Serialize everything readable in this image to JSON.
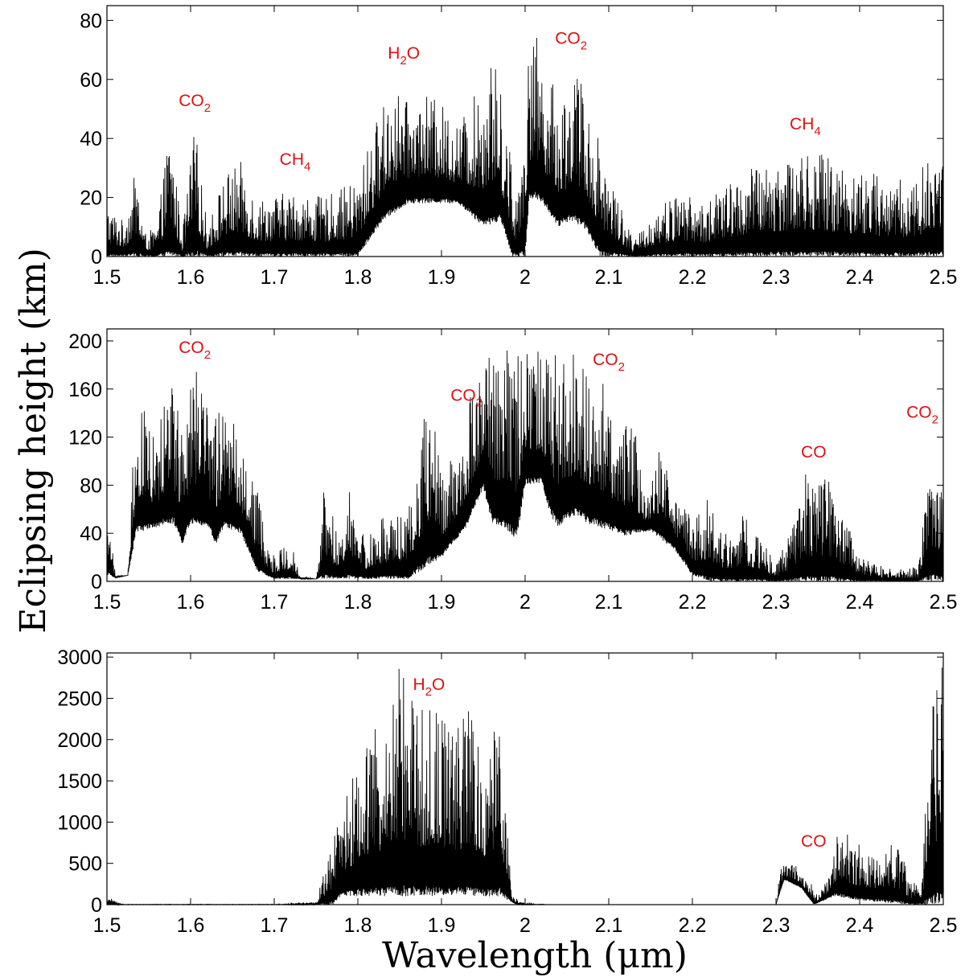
{
  "chart_data": [
    {
      "type": "line",
      "id": "top",
      "xlim": [
        1.5,
        2.5
      ],
      "ylim": [
        0,
        85
      ],
      "x_ticks": [
        1.5,
        1.6,
        1.7,
        1.8,
        1.9,
        2,
        2.1,
        2.2,
        2.3,
        2.4,
        2.5
      ],
      "x_tick_labels": [
        "1.5",
        "1.6",
        "1.7",
        "1.8",
        "1.9",
        "2",
        "2.1",
        "2.2",
        "2.3",
        "2.4",
        "2.5"
      ],
      "y_ticks": [
        0,
        20,
        40,
        60,
        80
      ],
      "y_tick_labels": [
        "0",
        "20",
        "40",
        "60",
        "80"
      ],
      "grid": false,
      "annotations": [
        {
          "base": "CO",
          "sub": "2",
          "x": 1.605,
          "y": 51
        },
        {
          "base": "CH",
          "sub": "4",
          "x": 1.725,
          "y": 31
        },
        {
          "base": "H",
          "sub": "2",
          "tail": "O",
          "x": 1.855,
          "y": 67
        },
        {
          "base": "CO",
          "sub": "2",
          "x": 2.055,
          "y": 72
        },
        {
          "base": "CH",
          "sub": "4",
          "x": 2.335,
          "y": 43
        }
      ],
      "spectrum": {
        "envelope": [
          [
            1.5,
            18
          ],
          [
            1.52,
            12
          ],
          [
            1.535,
            30
          ],
          [
            1.545,
            8
          ],
          [
            1.56,
            10
          ],
          [
            1.575,
            46
          ],
          [
            1.59,
            8
          ],
          [
            1.605,
            45
          ],
          [
            1.62,
            10
          ],
          [
            1.64,
            28
          ],
          [
            1.66,
            32
          ],
          [
            1.68,
            20
          ],
          [
            1.72,
            22
          ],
          [
            1.76,
            20
          ],
          [
            1.8,
            26
          ],
          [
            1.82,
            45
          ],
          [
            1.84,
            58
          ],
          [
            1.86,
            52
          ],
          [
            1.88,
            55
          ],
          [
            1.9,
            52
          ],
          [
            1.92,
            45
          ],
          [
            1.94,
            55
          ],
          [
            1.96,
            70
          ],
          [
            1.975,
            52
          ],
          [
            1.99,
            20
          ],
          [
            2.0,
            60
          ],
          [
            2.01,
            78
          ],
          [
            2.03,
            60
          ],
          [
            2.045,
            55
          ],
          [
            2.06,
            66
          ],
          [
            2.075,
            52
          ],
          [
            2.09,
            40
          ],
          [
            2.11,
            22
          ],
          [
            2.13,
            5
          ],
          [
            2.16,
            18
          ],
          [
            2.19,
            22
          ],
          [
            2.21,
            18
          ],
          [
            2.24,
            24
          ],
          [
            2.27,
            30
          ],
          [
            2.31,
            35
          ],
          [
            2.35,
            36
          ],
          [
            2.38,
            32
          ],
          [
            2.42,
            28
          ],
          [
            2.46,
            26
          ],
          [
            2.5,
            38
          ]
        ],
        "floor": [
          [
            1.5,
            0
          ],
          [
            1.8,
            0
          ],
          [
            1.83,
            12
          ],
          [
            1.86,
            18
          ],
          [
            1.92,
            18
          ],
          [
            1.95,
            10
          ],
          [
            1.97,
            12
          ],
          [
            1.985,
            0
          ],
          [
            2.0,
            0
          ],
          [
            2.005,
            20
          ],
          [
            2.02,
            18
          ],
          [
            2.04,
            10
          ],
          [
            2.055,
            12
          ],
          [
            2.07,
            10
          ],
          [
            2.09,
            0
          ],
          [
            2.5,
            0
          ]
        ]
      }
    },
    {
      "type": "line",
      "id": "middle",
      "xlim": [
        1.5,
        2.5
      ],
      "ylim": [
        0,
        210
      ],
      "x_ticks": [
        1.5,
        1.6,
        1.7,
        1.8,
        1.9,
        2,
        2.1,
        2.2,
        2.3,
        2.4,
        2.5
      ],
      "x_tick_labels": [
        "1.5",
        "1.6",
        "1.7",
        "1.8",
        "1.9",
        "2",
        "2.1",
        "2.2",
        "2.3",
        "2.4",
        "2.5"
      ],
      "y_ticks": [
        0,
        40,
        80,
        120,
        160,
        200
      ],
      "y_tick_labels": [
        "0",
        "40",
        "80",
        "120",
        "160",
        "200"
      ],
      "grid": false,
      "annotations": [
        {
          "base": "CO",
          "sub": "2",
          "x": 1.605,
          "y": 190
        },
        {
          "base": "CO",
          "sub": "2",
          "x": 1.93,
          "y": 150
        },
        {
          "base": "CO",
          "sub": "2",
          "x": 2.1,
          "y": 180
        },
        {
          "base": "CO",
          "sub": "",
          "x": 2.345,
          "y": 103
        },
        {
          "base": "CO",
          "sub": "2",
          "x": 2.475,
          "y": 136
        }
      ],
      "spectrum": {
        "envelope": [
          [
            1.5,
            80
          ],
          [
            1.51,
            5
          ],
          [
            1.525,
            5
          ],
          [
            1.535,
            165
          ],
          [
            1.55,
            140
          ],
          [
            1.56,
            120
          ],
          [
            1.575,
            180
          ],
          [
            1.59,
            135
          ],
          [
            1.605,
            178
          ],
          [
            1.62,
            150
          ],
          [
            1.64,
            140
          ],
          [
            1.65,
            158
          ],
          [
            1.66,
            120
          ],
          [
            1.68,
            80
          ],
          [
            1.695,
            20
          ],
          [
            1.71,
            30
          ],
          [
            1.72,
            35
          ],
          [
            1.73,
            5
          ],
          [
            1.75,
            2
          ],
          [
            1.76,
            80
          ],
          [
            1.78,
            30
          ],
          [
            1.79,
            75
          ],
          [
            1.81,
            35
          ],
          [
            1.83,
            55
          ],
          [
            1.86,
            60
          ],
          [
            1.875,
            120
          ],
          [
            1.885,
            160
          ],
          [
            1.9,
            90
          ],
          [
            1.92,
            110
          ],
          [
            1.94,
            170
          ],
          [
            1.955,
            200
          ],
          [
            1.97,
            195
          ],
          [
            1.99,
            190
          ],
          [
            2.01,
            198
          ],
          [
            2.03,
            185
          ],
          [
            2.05,
            195
          ],
          [
            2.07,
            185
          ],
          [
            2.09,
            170
          ],
          [
            2.11,
            145
          ],
          [
            2.13,
            130
          ],
          [
            2.145,
            70
          ],
          [
            2.16,
            115
          ],
          [
            2.18,
            80
          ],
          [
            2.2,
            55
          ],
          [
            2.22,
            70
          ],
          [
            2.24,
            40
          ],
          [
            2.26,
            55
          ],
          [
            2.28,
            40
          ],
          [
            2.3,
            15
          ],
          [
            2.32,
            45
          ],
          [
            2.335,
            90
          ],
          [
            2.35,
            80
          ],
          [
            2.36,
            88
          ],
          [
            2.38,
            60
          ],
          [
            2.4,
            20
          ],
          [
            2.44,
            10
          ],
          [
            2.47,
            12
          ],
          [
            2.485,
            120
          ],
          [
            2.5,
            95
          ]
        ],
        "floor": [
          [
            1.5,
            5
          ],
          [
            1.51,
            3
          ],
          [
            1.525,
            5
          ],
          [
            1.535,
            40
          ],
          [
            1.56,
            45
          ],
          [
            1.57,
            48
          ],
          [
            1.58,
            48
          ],
          [
            1.59,
            30
          ],
          [
            1.6,
            48
          ],
          [
            1.62,
            45
          ],
          [
            1.63,
            30
          ],
          [
            1.64,
            45
          ],
          [
            1.66,
            40
          ],
          [
            1.68,
            8
          ],
          [
            1.7,
            2
          ],
          [
            1.86,
            2
          ],
          [
            1.9,
            20
          ],
          [
            1.93,
            45
          ],
          [
            1.95,
            78
          ],
          [
            1.96,
            48
          ],
          [
            1.975,
            45
          ],
          [
            1.99,
            35
          ],
          [
            2.0,
            80
          ],
          [
            2.02,
            82
          ],
          [
            2.03,
            55
          ],
          [
            2.04,
            45
          ],
          [
            2.06,
            55
          ],
          [
            2.075,
            48
          ],
          [
            2.09,
            45
          ],
          [
            2.12,
            38
          ],
          [
            2.15,
            42
          ],
          [
            2.18,
            25
          ],
          [
            2.2,
            5
          ],
          [
            2.22,
            0
          ],
          [
            2.5,
            0
          ]
        ]
      }
    },
    {
      "type": "line",
      "id": "bottom",
      "xlim": [
        1.5,
        2.5
      ],
      "ylim": [
        0,
        3050
      ],
      "x_ticks": [
        1.5,
        1.6,
        1.7,
        1.8,
        1.9,
        2,
        2.1,
        2.2,
        2.3,
        2.4,
        2.5
      ],
      "x_tick_labels": [
        "1.5",
        "1.6",
        "1.7",
        "1.8",
        "1.9",
        "2",
        "2.1",
        "2.2",
        "2.3",
        "2.4",
        "2.5"
      ],
      "y_ticks": [
        0,
        500,
        1000,
        1500,
        2000,
        2500,
        3000
      ],
      "y_tick_labels": [
        "0",
        "500",
        "1000",
        "1500",
        "2000",
        "2500",
        "3000"
      ],
      "grid": false,
      "annotations": [
        {
          "base": "H",
          "sub": "2",
          "tail": "O",
          "x": 1.885,
          "y": 2600
        },
        {
          "base": "CO",
          "sub": "",
          "x": 2.345,
          "y": 700
        }
      ],
      "spectrum": {
        "envelope": [
          [
            1.5,
            120
          ],
          [
            1.51,
            40
          ],
          [
            1.52,
            5
          ],
          [
            1.7,
            5
          ],
          [
            1.75,
            30
          ],
          [
            1.77,
            800
          ],
          [
            1.79,
            1500
          ],
          [
            1.81,
            2100
          ],
          [
            1.83,
            2300
          ],
          [
            1.85,
            3000
          ],
          [
            1.87,
            2500
          ],
          [
            1.89,
            2600
          ],
          [
            1.91,
            2200
          ],
          [
            1.93,
            2500
          ],
          [
            1.95,
            2000
          ],
          [
            1.97,
            2200
          ],
          [
            1.985,
            100
          ],
          [
            2.0,
            20
          ],
          [
            2.03,
            0
          ],
          [
            2.3,
            0
          ],
          [
            2.305,
            450
          ],
          [
            2.32,
            520
          ],
          [
            2.34,
            300
          ],
          [
            2.35,
            100
          ],
          [
            2.36,
            300
          ],
          [
            2.375,
            1020
          ],
          [
            2.39,
            800
          ],
          [
            2.41,
            650
          ],
          [
            2.43,
            800
          ],
          [
            2.45,
            700
          ],
          [
            2.46,
            300
          ],
          [
            2.475,
            300
          ],
          [
            2.485,
            3000
          ],
          [
            2.5,
            3000
          ]
        ],
        "floor": [
          [
            1.5,
            0
          ],
          [
            1.77,
            0
          ],
          [
            1.78,
            100
          ],
          [
            1.97,
            100
          ],
          [
            1.99,
            0
          ],
          [
            2.3,
            0
          ],
          [
            2.31,
            300
          ],
          [
            2.33,
            200
          ],
          [
            2.345,
            0
          ],
          [
            2.37,
            100
          ],
          [
            2.4,
            50
          ],
          [
            2.46,
            0
          ],
          [
            2.5,
            0
          ]
        ]
      }
    }
  ],
  "axes": {
    "ylabel": "Eclipsing height (km)",
    "xlabel": "Wavelength (μm)"
  }
}
